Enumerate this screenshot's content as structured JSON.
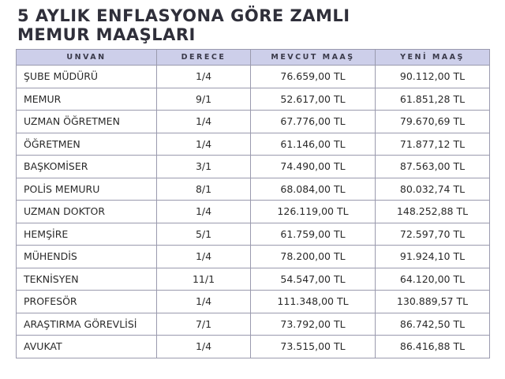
{
  "header": {
    "title_lines": [
      "5 AYLIK ENFLASYONA GÖRE ZAMLI",
      "MEMUR MAAŞLARI"
    ]
  },
  "table": {
    "columns": [
      "UNVAN",
      "DERECE",
      "MEVCUT MAAŞ",
      "YENİ MAAŞ"
    ],
    "rows": [
      [
        "ŞUBE MÜDÜRÜ",
        "1/4",
        "76.659,00 TL",
        "90.112,00 TL"
      ],
      [
        "MEMUR",
        "9/1",
        "52.617,00 TL",
        "61.851,28 TL"
      ],
      [
        "UZMAN ÖĞRETMEN",
        "1/4",
        "67.776,00 TL",
        "79.670,69 TL"
      ],
      [
        "ÖĞRETMEN",
        "1/4",
        "61.146,00 TL",
        "71.877,12 TL"
      ],
      [
        "BAŞKOMİSER",
        "3/1",
        "74.490,00 TL",
        "87.563,00 TL"
      ],
      [
        "POLİS MEMURU",
        "8/1",
        "68.084,00 TL",
        "80.032,74 TL"
      ],
      [
        "UZMAN DOKTOR",
        "1/4",
        "126.119,00 TL",
        "148.252,88 TL"
      ],
      [
        "HEMŞİRE",
        "5/1",
        "61.759,00 TL",
        "72.597,70 TL"
      ],
      [
        "MÜHENDİS",
        "1/4",
        "78.200,00 TL",
        "91.924,10 TL"
      ],
      [
        "TEKNİSYEN",
        "11/1",
        "54.547,00 TL",
        "64.120,00 TL"
      ],
      [
        "PROFESÖR",
        "1/4",
        "111.348,00 TL",
        "130.889,57 TL"
      ],
      [
        "ARAŞTIRMA GÖREVLİSİ",
        "7/1",
        "73.792,00 TL",
        "86.742,50 TL"
      ],
      [
        "AVUKAT",
        "1/4",
        "73.515,00 TL",
        "86.416,88 TL"
      ]
    ]
  }
}
